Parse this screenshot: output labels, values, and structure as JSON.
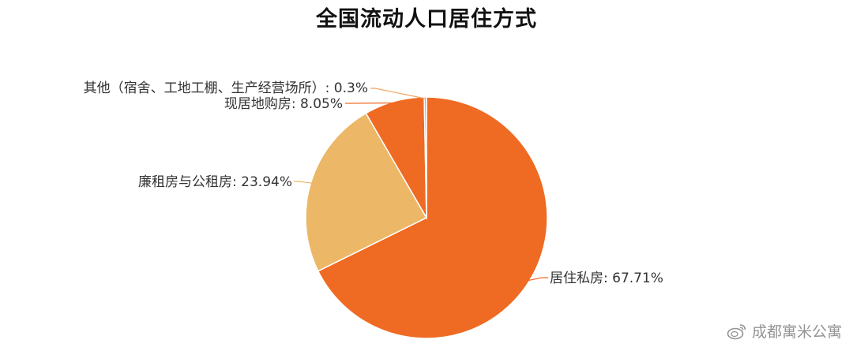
{
  "chart_data": {
    "type": "pie",
    "title": "全国流动人口居住方式",
    "slices": [
      {
        "label": "居住私房",
        "value": 67.71,
        "display": "67.71%",
        "color": "#EF6A23"
      },
      {
        "label": "廉租房与公租房",
        "value": 23.94,
        "display": "23.94%",
        "color": "#ECB867"
      },
      {
        "label": "现居地购房",
        "value": 8.05,
        "display": "8.05%",
        "color": "#EF6A23"
      },
      {
        "label": "其他（宿舍、工地工棚、生产经营场所）",
        "value": 0.3,
        "display": "0.3%",
        "color": "#F2A460"
      }
    ],
    "start_angle": "top",
    "direction": "clockwise"
  },
  "watermark": {
    "icon": "weibo-icon",
    "text": "成都寓米公寓"
  }
}
